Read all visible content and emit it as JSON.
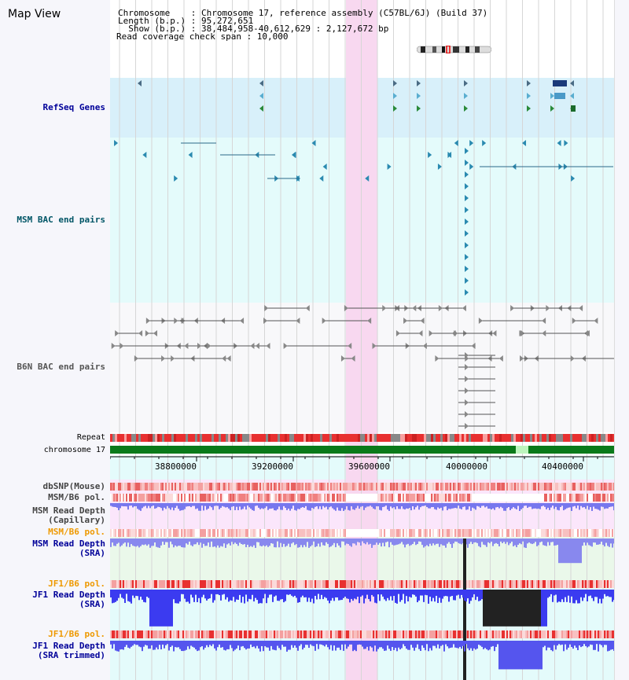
{
  "title": "Map View",
  "info": {
    "chromosome_line": "Chromosome    : Chromosome 17, reference assembly (C57BL/6J) (Build 37)",
    "length_line": "Length (b.p.) : 95,272,651",
    "show_line": "  Show (b.p.) : 38,484,958-40,612,629 : 2,127,672 bp",
    "coverage_line": "Read coverage check span : 10,000"
  },
  "tracks": {
    "refseq": "RefSeq Genes",
    "msm_bac": "MSM BAC end pairs",
    "b6n_bac": "B6N BAC end pairs",
    "repeat": "Repeat",
    "chromosome": "chromosome 17",
    "dbsnp": "dbSNP(Mouse)",
    "msm_b6_pol": "MSM/B6 pol.",
    "msm_depth_cap_1": "MSM Read Depth",
    "msm_depth_cap_2": "(Capillary)",
    "msm_b6_pol_2": "MSM/B6 pol.",
    "msm_depth_sra_1": "MSM Read Depth",
    "msm_depth_sra_2": "(SRA)",
    "jf1_b6_pol": "JF1/B6 pol.",
    "jf1_depth_sra_1": "JF1 Read Depth",
    "jf1_depth_sra_2": "(SRA)",
    "jf1_b6_pol_2": "JF1/B6 pol.",
    "jf1_depth_trim_1": "JF1 Read Depth",
    "jf1_depth_trim_2": "(SRA trimmed)"
  },
  "axis": {
    "ticks": [
      "38800000",
      "39200000",
      "39600000",
      "40000000",
      "40400000"
    ]
  },
  "colors": {
    "refseq": "#000099",
    "msm": "#005566",
    "b6n": "#555555",
    "orange": "#ee9900",
    "highlight": "#f8d8f0",
    "refseq_bg": "#d8f0fa",
    "msm_bg": "#e4fbfb"
  }
}
